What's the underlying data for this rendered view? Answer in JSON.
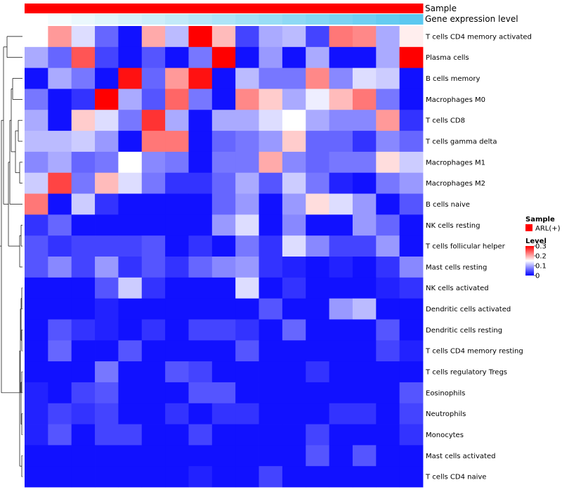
{
  "chart_data": {
    "type": "heatmap",
    "annotations": {
      "sample_label": "Sample",
      "gene_expression_label": "Gene expression level",
      "sample_color": "#ff0000",
      "gene_expression_gradient": [
        "#ffffff",
        "#5bc8f0"
      ]
    },
    "rows": [
      "T cells CD4 memory activated",
      "Plasma cells",
      "B cells memory",
      "Macrophages M0",
      "T cells CD8",
      "T cells gamma delta",
      "Macrophages M1",
      "Macrophages M2",
      "B cells naive",
      "NK cells resting",
      "T cells follicular helper",
      "Mast cells resting",
      "NK cells activated",
      "Dendritic cells activated",
      "Dendritic cells resting",
      "T cells CD4 memory resting",
      "T cells regulatory  Tregs",
      "Eosinophils",
      "Neutrophils",
      "Monocytes",
      "Mast cells activated",
      "T cells CD4 naive"
    ],
    "n_columns": 17,
    "values": [
      [
        0.15,
        0.21,
        0.13,
        0.06,
        0.01,
        0.2,
        0.11,
        0.3,
        0.19,
        0.04,
        0.1,
        0.11,
        0.04,
        0.23,
        0.22,
        0.1,
        0.16
      ],
      [
        0.1,
        0.06,
        0.25,
        0.04,
        0.01,
        0.05,
        0.01,
        0.07,
        0.3,
        0.01,
        0.09,
        0.01,
        0.1,
        0.01,
        0.01,
        0.1,
        0.3
      ],
      [
        0.01,
        0.1,
        0.07,
        0.01,
        0.29,
        0.06,
        0.21,
        0.29,
        0.01,
        0.11,
        0.07,
        0.07,
        0.22,
        0.08,
        0.13,
        0.12,
        0.01
      ],
      [
        0.07,
        0.01,
        0.03,
        0.3,
        0.1,
        0.05,
        0.24,
        0.07,
        0.01,
        0.22,
        0.18,
        0.1,
        0.14,
        0.19,
        0.23,
        0.07,
        0.01
      ],
      [
        0.1,
        0.01,
        0.18,
        0.13,
        0.07,
        0.27,
        0.1,
        0.01,
        0.1,
        0.1,
        0.13,
        0.15,
        0.1,
        0.08,
        0.08,
        0.21,
        0.03
      ],
      [
        0.11,
        0.11,
        0.12,
        0.09,
        0.01,
        0.23,
        0.23,
        0.01,
        0.06,
        0.07,
        0.09,
        0.18,
        0.06,
        0.06,
        0.03,
        0.08,
        0.06
      ],
      [
        0.08,
        0.1,
        0.06,
        0.07,
        0.15,
        0.08,
        0.07,
        0.01,
        0.07,
        0.07,
        0.2,
        0.08,
        0.06,
        0.07,
        0.07,
        0.17,
        0.12
      ],
      [
        0.12,
        0.26,
        0.07,
        0.19,
        0.13,
        0.07,
        0.03,
        0.03,
        0.06,
        0.1,
        0.05,
        0.12,
        0.07,
        0.02,
        0.01,
        0.07,
        0.09
      ],
      [
        0.23,
        0.01,
        0.12,
        0.03,
        0.01,
        0.01,
        0.01,
        0.01,
        0.06,
        0.09,
        0.01,
        0.09,
        0.17,
        0.13,
        0.09,
        0.01,
        0.05
      ],
      [
        0.03,
        0.06,
        0.01,
        0.01,
        0.01,
        0.01,
        0.01,
        0.01,
        0.09,
        0.13,
        0.01,
        0.08,
        0.01,
        0.01,
        0.09,
        0.06,
        0.01
      ],
      [
        0.05,
        0.03,
        0.04,
        0.04,
        0.04,
        0.05,
        0.01,
        0.03,
        0.01,
        0.07,
        0.03,
        0.13,
        0.08,
        0.04,
        0.04,
        0.09,
        0.01
      ],
      [
        0.05,
        0.08,
        0.04,
        0.09,
        0.03,
        0.05,
        0.03,
        0.06,
        0.08,
        0.09,
        0.03,
        0.02,
        0.01,
        0.02,
        0.01,
        0.03,
        0.08
      ],
      [
        0.01,
        0.01,
        0.01,
        0.05,
        0.12,
        0.03,
        0.01,
        0.01,
        0.01,
        0.13,
        0.01,
        0.03,
        0.01,
        0.01,
        0.01,
        0.02,
        0.03
      ],
      [
        0.01,
        0.01,
        0.01,
        0.02,
        0.01,
        0.01,
        0.01,
        0.01,
        0.01,
        0.01,
        0.05,
        0.01,
        0.01,
        0.09,
        0.11,
        0.01,
        0.01
      ],
      [
        0.01,
        0.05,
        0.03,
        0.02,
        0.01,
        0.03,
        0.01,
        0.04,
        0.04,
        0.03,
        0.01,
        0.06,
        0.01,
        0.01,
        0.01,
        0.05,
        0.01
      ],
      [
        0.01,
        0.06,
        0.01,
        0.01,
        0.05,
        0.01,
        0.01,
        0.01,
        0.01,
        0.05,
        0.01,
        0.01,
        0.01,
        0.01,
        0.01,
        0.04,
        0.02
      ],
      [
        0.01,
        0.01,
        0.01,
        0.07,
        0.01,
        0.01,
        0.05,
        0.04,
        0.01,
        0.01,
        0.01,
        0.01,
        0.03,
        0.01,
        0.01,
        0.01,
        0.01
      ],
      [
        0.02,
        0.01,
        0.04,
        0.05,
        0.01,
        0.01,
        0.01,
        0.05,
        0.05,
        0.01,
        0.01,
        0.01,
        0.01,
        0.01,
        0.01,
        0.01,
        0.05
      ],
      [
        0.02,
        0.04,
        0.03,
        0.04,
        0.01,
        0.01,
        0.03,
        0.01,
        0.03,
        0.03,
        0.01,
        0.01,
        0.01,
        0.03,
        0.03,
        0.01,
        0.04
      ],
      [
        0.02,
        0.05,
        0.01,
        0.04,
        0.04,
        0.01,
        0.01,
        0.04,
        0.01,
        0.01,
        0.01,
        0.01,
        0.04,
        0.01,
        0.01,
        0.01,
        0.03
      ],
      [
        0.01,
        0.01,
        0.01,
        0.01,
        0.01,
        0.01,
        0.01,
        0.01,
        0.01,
        0.01,
        0.01,
        0.01,
        0.05,
        0.01,
        0.05,
        0.01,
        0.01
      ],
      [
        0.01,
        0.01,
        0.01,
        0.01,
        0.01,
        0.01,
        0.01,
        0.02,
        0.01,
        0.01,
        0.04,
        0.01,
        0.01,
        0.01,
        0.01,
        0.01,
        0.01
      ]
    ],
    "color_scale": {
      "low": "#0000ff",
      "mid": "#ffffff",
      "high": "#ff0000",
      "domain": [
        0,
        0.15,
        0.3
      ]
    },
    "legend": {
      "sample_title": "Sample",
      "sample_item": "ARL(+)",
      "level_title": "Level",
      "level_ticks": [
        "0.3",
        "0.2",
        "0.1",
        "0"
      ],
      "level_tick_values": [
        0.3,
        0.2,
        0.1,
        0
      ]
    }
  }
}
